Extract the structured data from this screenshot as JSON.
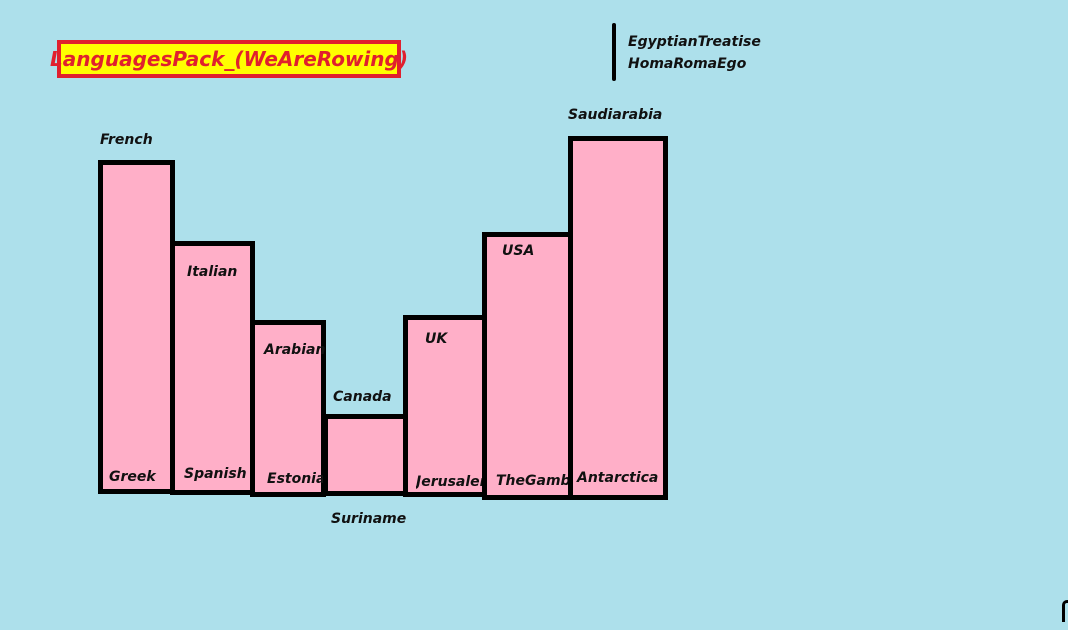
{
  "title": "LanguagesPack_(WeAreRowing)",
  "legend": [
    "EgyptianTreatise",
    "HomaRomaEgo"
  ],
  "colors": {
    "background": "#ADE0EB",
    "bar_fill": "#FFAFC8",
    "title_fill": "#FFFF00",
    "title_accent": "#E0202E"
  },
  "bars": [
    {
      "top_label": "French",
      "bottom_label": "Greek"
    },
    {
      "top_label": "Italian",
      "bottom_label": "Spanish"
    },
    {
      "top_label": "Arabian",
      "bottom_label": "Estonia"
    },
    {
      "top_label": "Canada",
      "bottom_label": "Suriname"
    },
    {
      "top_label": "UK",
      "bottom_label": "Jerusalem"
    },
    {
      "top_label": "USA",
      "bottom_label": "TheGambia"
    },
    {
      "top_label": "Saudiarabia",
      "bottom_label": "Antarctica"
    }
  ]
}
